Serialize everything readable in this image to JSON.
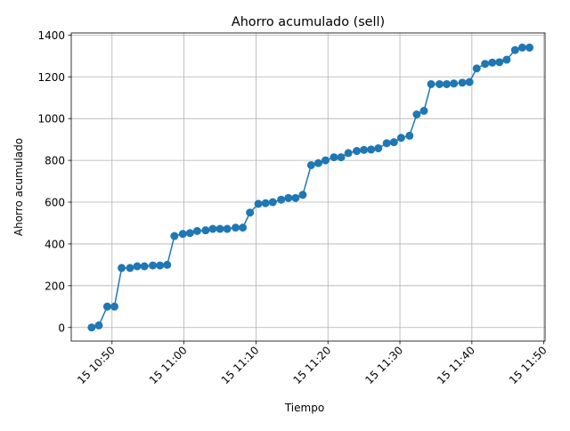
{
  "chart_data": {
    "type": "line",
    "title": "Ahorro acumulado (sell)",
    "xlabel": "Tiempo",
    "ylabel": "Ahorro acumulado",
    "x_axis_type": "time",
    "x_tick_labels": [
      {
        "time": "10:50",
        "label": "15 10:50"
      },
      {
        "time": "11:00",
        "label": "15 11:00"
      },
      {
        "time": "11:10",
        "label": "15 11:10"
      },
      {
        "time": "11:20",
        "label": "15 11:20"
      },
      {
        "time": "11:30",
        "label": "15 11:30"
      },
      {
        "time": "11:40",
        "label": "15 11:40"
      },
      {
        "time": "11:50",
        "label": "15 11:50"
      }
    ],
    "y_ticks": [
      0,
      200,
      400,
      600,
      800,
      1000,
      1200,
      1400
    ],
    "xlim": [
      "10:44:20",
      "11:50:10"
    ],
    "ylim": [
      -65,
      1410
    ],
    "grid": true,
    "series_color": "#1f77b4",
    "marker": "circle",
    "series": [
      {
        "x": [
          "10:47:10",
          "10:48:10",
          "10:49:20",
          "10:50:20",
          "10:51:20",
          "10:52:30",
          "10:53:30",
          "10:54:30",
          "10:55:40",
          "10:56:40",
          "10:57:40",
          "10:58:40",
          "10:59:50",
          "11:00:50",
          "11:01:50",
          "11:03:00",
          "11:04:00",
          "11:05:00",
          "11:06:00",
          "11:07:10",
          "11:08:10",
          "11:09:10",
          "11:10:20",
          "11:11:20",
          "11:12:20",
          "11:13:30",
          "11:14:30",
          "11:15:30",
          "11:16:30",
          "11:17:40",
          "11:18:40",
          "11:19:40",
          "11:20:50",
          "11:21:50",
          "11:22:50",
          "11:24:00",
          "11:25:00",
          "11:26:00",
          "11:27:00",
          "11:28:10",
          "11:29:10",
          "11:30:10",
          "11:31:20",
          "11:32:20",
          "11:33:20",
          "11:34:20",
          "11:35:30",
          "11:36:30",
          "11:37:30",
          "11:38:40",
          "11:39:40",
          "11:40:40",
          "11:41:50",
          "11:42:50",
          "11:43:50",
          "11:44:50",
          "11:46:00",
          "11:47:00",
          "11:48:00"
        ],
        "y": [
          0,
          10,
          100,
          100,
          285,
          285,
          293,
          293,
          297,
          297,
          300,
          438,
          448,
          452,
          462,
          465,
          472,
          472,
          472,
          478,
          478,
          550,
          592,
          595,
          600,
          612,
          620,
          620,
          635,
          777,
          787,
          800,
          815,
          815,
          835,
          845,
          850,
          852,
          858,
          882,
          887,
          908,
          918,
          1020,
          1037,
          1165,
          1165,
          1165,
          1168,
          1172,
          1175,
          1240,
          1262,
          1268,
          1270,
          1282,
          1328,
          1340,
          1340
        ]
      }
    ]
  }
}
